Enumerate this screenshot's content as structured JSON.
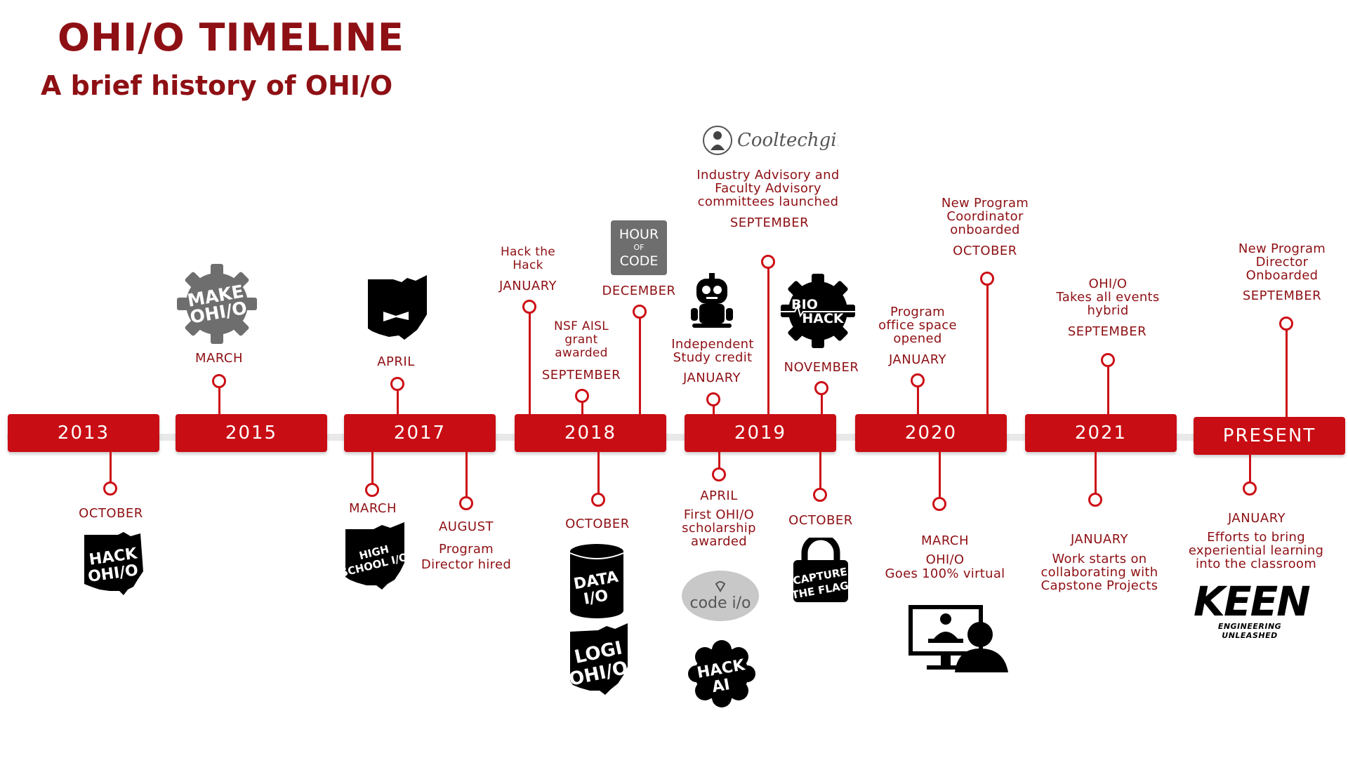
{
  "header": {
    "title": "OHI/O TIMELINE",
    "subtitle": "A brief history of OHI/O"
  },
  "years": [
    "2013",
    "2015",
    "2017",
    "2018",
    "2019",
    "2020",
    "2021",
    "PRESENT"
  ],
  "events": {
    "e2013_oct": {
      "month": "OCTOBER",
      "logo": "HACK OHI/O"
    },
    "e2015_mar": {
      "month": "MARCH",
      "logo": "MAKE OHI/O"
    },
    "e2017_mar": {
      "month": "MARCH",
      "logo": "HIGH SCHOOL I/O"
    },
    "e2017_apr": {
      "month": "APRIL",
      "logo": "ohio-bowtie"
    },
    "e2017_aug": {
      "month": "AUGUST",
      "text": "Program\nDirector hired"
    },
    "e2018_jan": {
      "month": "JANUARY",
      "text": "Hack the\nHack"
    },
    "e2018_sep": {
      "month": "SEPTEMBER",
      "text": "NSF AISL\ngrant\nawarded"
    },
    "e2018_oct": {
      "month": "OCTOBER",
      "logo1": "DATA I/O",
      "logo2": "LOGI OHI/O"
    },
    "e2018_dec": {
      "month": "DECEMBER",
      "logo": "HOUR OF CODE"
    },
    "e2019_jan": {
      "month": "JANUARY",
      "text": "Independent\nStudy credit"
    },
    "e2019_apr": {
      "month": "APRIL",
      "text": "First OHI/O\nscholarship\nawarded",
      "logo1": "code i/o",
      "logo2": "HACK AI"
    },
    "e2019_sep": {
      "month": "SEPTEMBER",
      "text": "Industry Advisory and\nFaculty Advisory\ncommittees launched",
      "logo": "Cooltechgirls"
    },
    "e2019_oct": {
      "month": "OCTOBER",
      "logo": "CAPTURE THE FLAG"
    },
    "e2019_nov": {
      "month": "NOVEMBER",
      "logo": "BIO HACK"
    },
    "e2020_jan": {
      "month": "JANUARY",
      "text": "Program\noffice space\nopened"
    },
    "e2020_mar": {
      "month": "MARCH",
      "text": "OHI/O\nGoes 100% virtual"
    },
    "e2020_oct": {
      "month": "OCTOBER",
      "text": "New Program\nCoordinator\nonboarded"
    },
    "e2021_jan": {
      "month": "JANUARY",
      "text": "Work starts on\ncollaborating with\nCapstone Projects"
    },
    "e2021_sep": {
      "month": "SEPTEMBER",
      "text": "OHI/O\nTakes all events\nhybrid"
    },
    "epres_jan": {
      "month": "JANUARY",
      "text": "Efforts to bring\nexperiential learning\ninto the classroom",
      "logo": "KEEN",
      "logo_sub": "ENGINEERING UNLEASHED"
    },
    "epres_sep": {
      "month": "SEPTEMBER",
      "text": "New Program\nDirector\nOnboarded"
    }
  },
  "colors": {
    "accent": "#c90d14",
    "text": "#8e1014"
  }
}
